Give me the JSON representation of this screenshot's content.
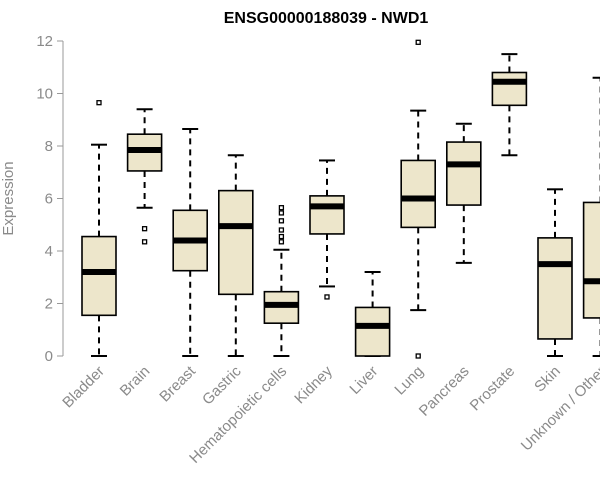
{
  "chart_data": {
    "type": "boxplot",
    "title": "ENSG00000188039 - NWD1",
    "ylabel": "Expression",
    "xlabel": "",
    "ylim": [
      0,
      12
    ],
    "yticks": [
      0,
      2,
      4,
      6,
      8,
      10,
      12
    ],
    "ytick_labels": [
      "0",
      "2",
      "4",
      "6",
      "8",
      "10",
      "12"
    ],
    "box_fill": "#ede6cb",
    "categories": [
      "Bladder",
      "Brain",
      "Breast",
      "Gastric",
      "Hematopoietic cells",
      "Kidney",
      "Liver",
      "Lung",
      "Pancreas",
      "Prostate",
      "Skin",
      "Unknown / Other"
    ],
    "boxes": [
      {
        "category": "Bladder",
        "whisker_low": 0.0,
        "q1": 1.55,
        "median": 3.2,
        "q3": 4.55,
        "whisker_high": 8.05,
        "outliers": [
          9.65
        ]
      },
      {
        "category": "Brain",
        "whisker_low": 5.65,
        "q1": 7.05,
        "median": 7.85,
        "q3": 8.45,
        "whisker_high": 9.4,
        "outliers": [
          4.85,
          4.35
        ]
      },
      {
        "category": "Breast",
        "whisker_low": 0.0,
        "q1": 3.25,
        "median": 4.4,
        "q3": 5.55,
        "whisker_high": 8.65,
        "outliers": []
      },
      {
        "category": "Gastric",
        "whisker_low": 0.0,
        "q1": 2.35,
        "median": 4.95,
        "q3": 6.3,
        "whisker_high": 7.65,
        "outliers": []
      },
      {
        "category": "Hematopoietic cells",
        "whisker_low": 0.0,
        "q1": 1.25,
        "median": 1.95,
        "q3": 2.45,
        "whisker_high": 4.05,
        "outliers": [
          4.35,
          4.55,
          4.8,
          5.15,
          5.45,
          5.65
        ]
      },
      {
        "category": "Kidney",
        "whisker_low": 2.65,
        "q1": 4.65,
        "median": 5.7,
        "q3": 6.1,
        "whisker_high": 7.45,
        "outliers": [
          2.25
        ]
      },
      {
        "category": "Liver",
        "whisker_low": 0.0,
        "q1": 0.0,
        "median": 1.15,
        "q3": 1.85,
        "whisker_high": 3.2,
        "outliers": []
      },
      {
        "category": "Lung",
        "whisker_low": 1.75,
        "q1": 4.9,
        "median": 6.0,
        "q3": 7.45,
        "whisker_high": 9.35,
        "outliers": [
          11.95,
          0.0
        ]
      },
      {
        "category": "Pancreas",
        "whisker_low": 3.55,
        "q1": 5.75,
        "median": 7.3,
        "q3": 8.15,
        "whisker_high": 8.85,
        "outliers": []
      },
      {
        "category": "Prostate",
        "whisker_low": 7.65,
        "q1": 9.55,
        "median": 10.45,
        "q3": 10.8,
        "whisker_high": 11.5,
        "outliers": []
      },
      {
        "category": "Skin",
        "whisker_low": 0.0,
        "q1": 0.65,
        "median": 3.5,
        "q3": 4.5,
        "whisker_high": 6.35,
        "outliers": []
      },
      {
        "category": "Unknown / Other",
        "whisker_low": 0.0,
        "q1": 1.45,
        "median": 2.85,
        "q3": 5.85,
        "whisker_high": 10.6,
        "outliers": []
      }
    ]
  }
}
